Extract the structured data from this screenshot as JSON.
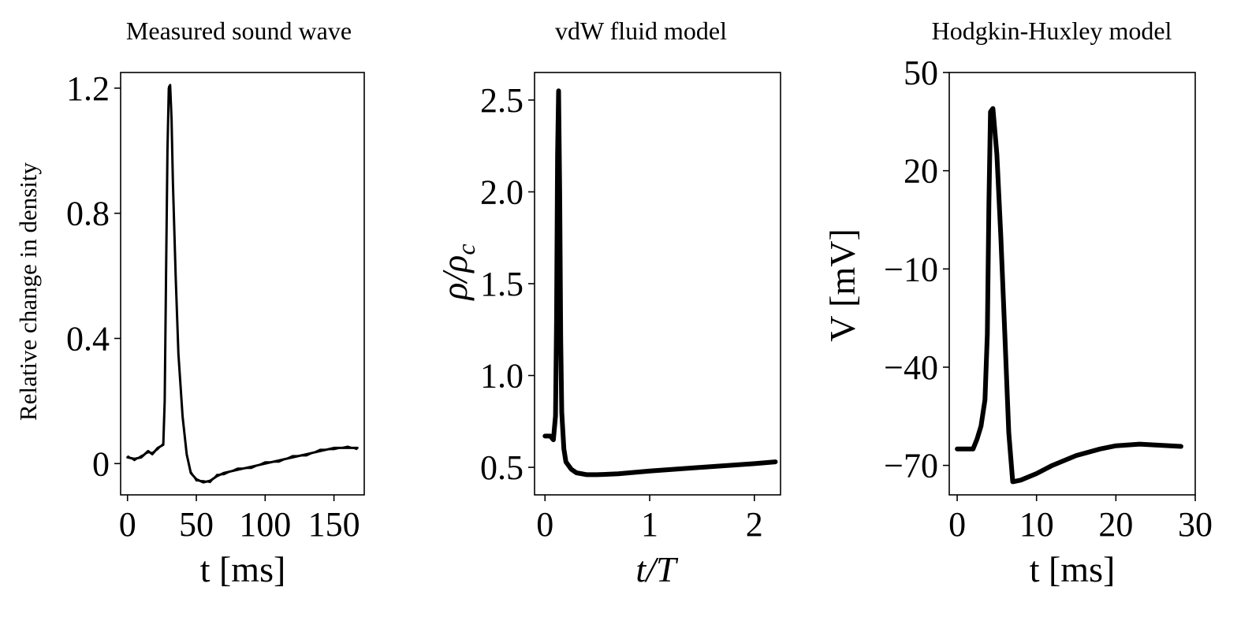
{
  "chart_data": [
    {
      "type": "line",
      "title": "Measured sound wave",
      "xlabel": "t [ms]",
      "ylabel": "Relative change in density",
      "xlim": [
        -5,
        172
      ],
      "ylim": [
        -0.1,
        1.25
      ],
      "xticks": [
        0,
        50,
        100,
        150
      ],
      "xtick_labels": [
        "0",
        "50",
        "100",
        "150"
      ],
      "yticks": [
        0,
        0.4,
        0.8,
        1.2
      ],
      "ytick_labels": [
        "0",
        "0.4",
        "0.8",
        "1.2"
      ],
      "grid": false,
      "series": [
        {
          "x": [
            0,
            5,
            10,
            15,
            18,
            22,
            26,
            27,
            28,
            29,
            30,
            31,
            32,
            33,
            35,
            37,
            40,
            43,
            46,
            50,
            55,
            60,
            65,
            70,
            80,
            90,
            100,
            110,
            120,
            130,
            140,
            150,
            160,
            167
          ],
          "y": [
            0.02,
            0.015,
            0.02,
            0.04,
            0.03,
            0.05,
            0.06,
            0.2,
            0.6,
            1.0,
            1.2,
            1.21,
            1.1,
            0.9,
            0.6,
            0.35,
            0.15,
            0.03,
            -0.03,
            -0.05,
            -0.06,
            -0.055,
            -0.04,
            -0.03,
            -0.02,
            -0.01,
            0.0,
            0.01,
            0.02,
            0.03,
            0.04,
            0.05,
            0.05,
            0.05
          ]
        }
      ]
    },
    {
      "type": "line",
      "title": "vdW fluid model",
      "xlabel": "t/T",
      "ylabel": "ρ/ρ_c",
      "xlim": [
        -0.1,
        2.25
      ],
      "ylim": [
        0.35,
        2.65
      ],
      "xticks": [
        0,
        1,
        2
      ],
      "xtick_labels": [
        "0",
        "1",
        "2"
      ],
      "yticks": [
        0.5,
        1.0,
        1.5,
        2.0,
        2.5
      ],
      "ytick_labels": [
        "0.5",
        "1.0",
        "1.5",
        "2.0",
        "2.5"
      ],
      "grid": false,
      "series": [
        {
          "x": [
            0,
            0.05,
            0.08,
            0.1,
            0.11,
            0.12,
            0.13,
            0.14,
            0.15,
            0.16,
            0.18,
            0.2,
            0.25,
            0.3,
            0.4,
            0.5,
            0.7,
            1.0,
            1.5,
            2.0,
            2.2
          ],
          "y": [
            0.67,
            0.67,
            0.65,
            0.78,
            1.3,
            2.2,
            2.55,
            2.0,
            1.2,
            0.8,
            0.6,
            0.53,
            0.49,
            0.47,
            0.46,
            0.46,
            0.465,
            0.48,
            0.5,
            0.52,
            0.53
          ]
        }
      ]
    },
    {
      "type": "line",
      "title": "Hodgkin-Huxley model",
      "xlabel": "t [ms]",
      "ylabel": "V [mV]",
      "xlim": [
        -1,
        30
      ],
      "ylim": [
        -79,
        50
      ],
      "xticks": [
        0,
        10,
        20,
        30
      ],
      "xtick_labels": [
        "0",
        "10",
        "20",
        "30"
      ],
      "yticks": [
        -70,
        -40,
        -10,
        20,
        50
      ],
      "ytick_labels": [
        "−70",
        "−40",
        "−10",
        "20",
        "50"
      ],
      "grid": false,
      "series": [
        {
          "x": [
            0,
            1,
            2,
            2.5,
            3,
            3.5,
            3.8,
            4.0,
            4.2,
            4.5,
            5.0,
            5.5,
            6.0,
            6.5,
            7.0,
            8,
            10,
            12,
            15,
            18,
            20,
            23,
            25,
            28.2
          ],
          "y": [
            -65,
            -65,
            -65,
            -62,
            -58,
            -50,
            -30,
            10,
            38,
            39,
            25,
            0,
            -30,
            -60,
            -75,
            -74.5,
            -72.5,
            -70,
            -67,
            -65,
            -64,
            -63.5,
            -63.8,
            -64.2
          ]
        }
      ]
    }
  ]
}
